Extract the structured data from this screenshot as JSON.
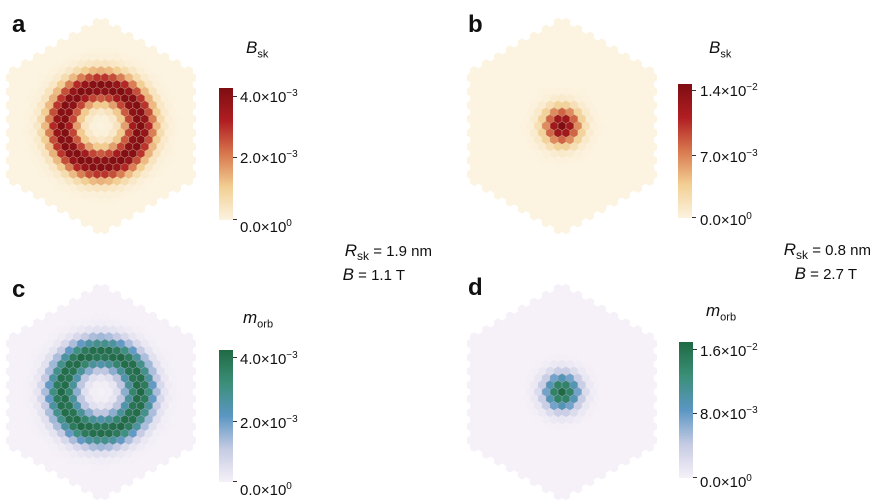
{
  "panels": [
    {
      "id": "a",
      "letter": "a",
      "map": "ring",
      "scale": "red",
      "colorbar_title": {
        "symbol": "B",
        "sub": "sk"
      },
      "ticks": [
        {
          "mant": "4.0×10",
          "exp": "−3"
        },
        {
          "mant": "2.0×10",
          "exp": "−3"
        },
        {
          "mant": "0.0×10",
          "exp": "0"
        }
      ]
    },
    {
      "id": "b",
      "letter": "b",
      "map": "dot",
      "scale": "red",
      "colorbar_title": {
        "symbol": "B",
        "sub": "sk"
      },
      "ticks": [
        {
          "mant": "1.4×10",
          "exp": "−2"
        },
        {
          "mant": "7.0×10",
          "exp": "−3"
        },
        {
          "mant": "0.0×10",
          "exp": "0"
        }
      ]
    },
    {
      "id": "c",
      "letter": "c",
      "map": "ring",
      "scale": "green",
      "colorbar_title": {
        "symbol": "m",
        "sub": "orb"
      },
      "ticks": [
        {
          "mant": "4.0×10",
          "exp": "−3"
        },
        {
          "mant": "2.0×10",
          "exp": "−3"
        },
        {
          "mant": "0.0×10",
          "exp": "0"
        }
      ]
    },
    {
      "id": "d",
      "letter": "d",
      "map": "dot",
      "scale": "green",
      "colorbar_title": {
        "symbol": "m",
        "sub": "orb"
      },
      "ticks": [
        {
          "mant": "1.6×10",
          "exp": "−2"
        },
        {
          "mant": "8.0×10",
          "exp": "−3"
        },
        {
          "mant": "0.0×10",
          "exp": "0"
        }
      ]
    }
  ],
  "params": [
    {
      "r_sym": "R",
      "r_sub": "sk",
      "r_val": " = 1.9 nm",
      "b_sym": "B",
      "b_val": " = 1.1 T"
    },
    {
      "r_sym": "R",
      "r_sub": "sk",
      "r_val": " = 0.8 nm",
      "b_sym": "B",
      "b_val": " = 2.7 T"
    }
  ],
  "colors": {
    "red_scale": [
      "#fcf3e0",
      "#f2cf93",
      "#d8784e",
      "#b01e22",
      "#7e0d12"
    ],
    "green_scale": [
      "#f6f1f8",
      "#c5cbe3",
      "#5b96c3",
      "#3b8f78",
      "#1f6a44"
    ]
  }
}
